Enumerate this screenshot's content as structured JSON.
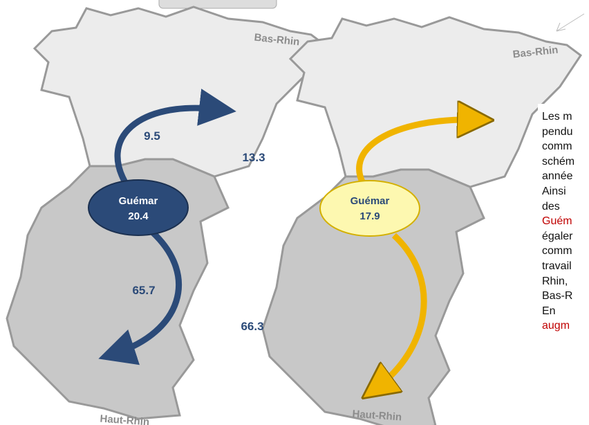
{
  "maps": [
    {
      "north_label": "Bas-Rhin",
      "south_label": "Haut-Rhin",
      "commune": "Guémar",
      "commune_value": 20.4,
      "north_flow": 9.5,
      "south_flow": 65.7
    },
    {
      "north_label": "Bas-Rhin",
      "south_label": "Haut-Rhin",
      "commune": "Guémar",
      "commune_value": 17.9,
      "north_flow": 13.3,
      "south_flow": 66.3
    }
  ],
  "text_lines": [
    "Les m",
    "pendu",
    "comm",
    "schém",
    "année",
    "Ainsi",
    "des",
    "Guém",
    "égaler",
    "comm",
    "travail",
    "Rhin,",
    "Bas-R",
    "En",
    "augm"
  ]
}
